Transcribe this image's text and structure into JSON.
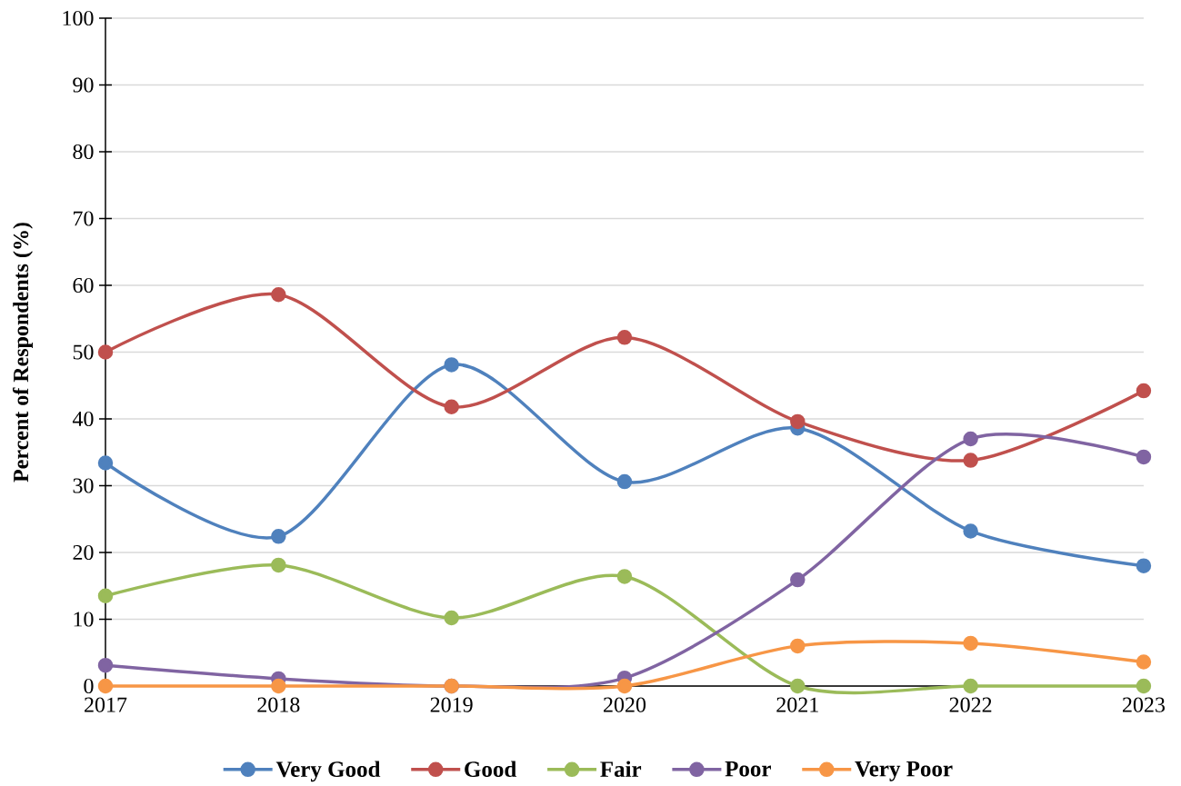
{
  "chart_data": {
    "type": "line",
    "ylabel": "Percent of Respondents (%)",
    "categories": [
      "2017",
      "2018",
      "2019",
      "2020",
      "2021",
      "2022",
      "2023"
    ],
    "ylim": [
      0,
      100
    ],
    "yticks": [
      0,
      10,
      20,
      30,
      40,
      50,
      60,
      70,
      80,
      90,
      100
    ],
    "grid": "y",
    "legend": "bottom",
    "marker": "circle",
    "line_style": "solid",
    "series": [
      {
        "name": "Very Good",
        "color": "#4f81bd",
        "values": [
          33.4,
          22.4,
          48.1,
          30.6,
          38.6,
          23.2,
          18.0
        ]
      },
      {
        "name": "Good",
        "color": "#c0504d",
        "values": [
          50.0,
          58.6,
          41.8,
          52.2,
          39.6,
          33.8,
          44.2
        ]
      },
      {
        "name": "Fair",
        "color": "#9bbb59",
        "values": [
          13.5,
          18.1,
          10.2,
          16.4,
          0,
          0,
          0
        ]
      },
      {
        "name": "Poor",
        "color": "#8064a2",
        "values": [
          3.1,
          1.1,
          0,
          1.2,
          15.9,
          37.0,
          34.3
        ]
      },
      {
        "name": "Very Poor",
        "color": "#f79646",
        "values": [
          0,
          0,
          0,
          0,
          6.0,
          6.4,
          3.6
        ]
      }
    ]
  }
}
